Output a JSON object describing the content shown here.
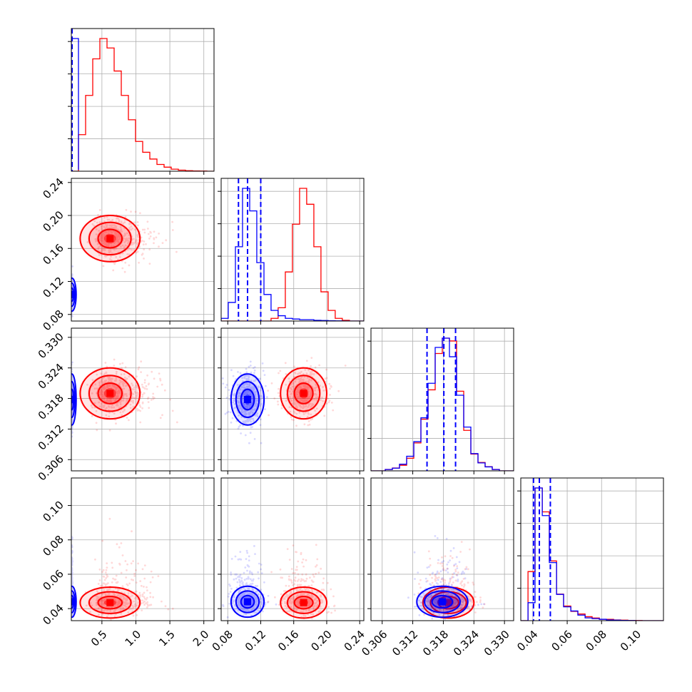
{
  "chart_data": {
    "type": "corner",
    "title": "",
    "grid": true,
    "colors": {
      "red": "#ff0000",
      "blue": "#0000ff"
    },
    "parameters": [
      {
        "name": "",
        "range": [
          0.05,
          2.15
        ]
      },
      {
        "name": "",
        "range": [
          0.072,
          0.245
        ],
        "ticks": [
          0.08,
          0.12,
          0.16,
          0.2,
          0.24
        ],
        "tick_labels": [
          "0.08",
          "0.12",
          "0.16",
          "0.20",
          "0.24"
        ]
      },
      {
        "name": "",
        "range": [
          0.3038,
          0.3318
        ],
        "ticks": [
          0.306,
          0.312,
          0.318,
          0.324,
          0.33
        ],
        "tick_labels": [
          "0.306",
          "0.312",
          "0.318",
          "0.324",
          "0.330"
        ]
      },
      {
        "name": "",
        "range": [
          0.033,
          0.116
        ],
        "ticks": [
          0.04,
          0.06,
          0.08,
          0.1
        ],
        "tick_labels": [
          "0.04",
          "0.06",
          "0.08",
          "0.10"
        ]
      }
    ],
    "x_ticks_param0": [
      0.5,
      1.0,
      1.5,
      2.0
    ],
    "x_tick_labels_param0": [
      "0.5",
      "1.0",
      "1.5",
      "2.0"
    ],
    "series": [
      {
        "color": "red",
        "histograms": [
          {
            "edges": [
              0.05,
              0.155,
              0.26,
              0.365,
              0.47,
              0.575,
              0.68,
              0.785,
              0.89,
              0.995,
              1.1,
              1.205,
              1.31,
              1.415,
              1.52,
              1.625,
              1.73,
              1.835,
              1.94,
              2.045,
              2.15
            ],
            "counts": [
              0,
              0.27,
              0.56,
              0.83,
              0.98,
              0.91,
              0.74,
              0.56,
              0.38,
              0.22,
              0.14,
              0.09,
              0.05,
              0.03,
              0.015,
              0.008,
              0.004,
              0.002,
              0.001,
              0
            ]
          },
          {
            "edges": [
              0.072,
              0.0806,
              0.0893,
              0.0979,
              0.1066,
              0.1152,
              0.1239,
              0.1325,
              0.1411,
              0.1498,
              0.1584,
              0.1671,
              0.1757,
              0.1844,
              0.193,
              0.2017,
              0.2103,
              0.2189,
              0.2276,
              0.2362,
              0.2449
            ],
            "counts": [
              0,
              0,
              0,
              0,
              0,
              0,
              0,
              0.02,
              0.1,
              0.37,
              0.73,
              1.0,
              0.88,
              0.56,
              0.22,
              0.08,
              0.02,
              0.005,
              0,
              0
            ]
          },
          {
            "edges": [
              0.3038,
              0.3052,
              0.3066,
              0.308,
              0.3094,
              0.3108,
              0.3122,
              0.3136,
              0.315,
              0.3164,
              0.3178,
              0.3192,
              0.3206,
              0.322,
              0.3234,
              0.3248,
              0.3262,
              0.3276,
              0.329,
              0.3304,
              0.3318
            ],
            "counts": [
              0,
              0,
              0.01,
              0.02,
              0.04,
              0.09,
              0.2,
              0.37,
              0.58,
              0.84,
              0.95,
              0.93,
              0.57,
              0.29,
              0.12,
              0.06,
              0.03,
              0.01,
              0,
              0
            ]
          },
          {
            "edges": [
              0.033,
              0.0372,
              0.0413,
              0.0455,
              0.0496,
              0.0538,
              0.0579,
              0.0621,
              0.0662,
              0.0704,
              0.0745,
              0.0787,
              0.0828,
              0.087,
              0.0911,
              0.0953,
              0.0994,
              0.1036,
              0.1077,
              0.1119,
              0.116
            ],
            "counts": [
              0,
              0.37,
              1.0,
              0.82,
              0.45,
              0.2,
              0.11,
              0.07,
              0.05,
              0.03,
              0.02,
              0.01,
              0.01,
              0.005,
              0.004,
              0.002,
              0.001,
              0,
              0,
              0
            ]
          }
        ],
        "means": [
          0.62,
          0.172,
          0.319,
          0.0435
        ],
        "sigmas": [
          0.22,
          0.014,
          0.0025,
          0.0045
        ]
      },
      {
        "color": "blue",
        "histograms": [
          {
            "edges": [
              0.05,
              0.155
            ],
            "counts": [
              1.0,
              0.01
            ]
          },
          {
            "edges": [
              0.072,
              0.0806,
              0.0893,
              0.0979,
              0.1066,
              0.1152,
              0.1239,
              0.1325,
              0.1411,
              0.1498,
              0.1584,
              0.1671,
              0.1757,
              0.1844,
              0.193,
              0.2017,
              0.2103,
              0.2189,
              0.2276,
              0.2362,
              0.2449
            ],
            "counts": [
              0.02,
              0.14,
              0.56,
              1.0,
              0.83,
              0.44,
              0.2,
              0.08,
              0.04,
              0.02,
              0.015,
              0.01,
              0.01,
              0.005,
              0.004,
              0.002,
              0.001,
              0,
              0,
              0
            ]
          },
          {
            "edges": [
              0.3038,
              0.3052,
              0.3066,
              0.308,
              0.3094,
              0.3108,
              0.3122,
              0.3136,
              0.315,
              0.3164,
              0.3178,
              0.3192,
              0.3206,
              0.322,
              0.3234,
              0.3248,
              0.3262,
              0.3276,
              0.329,
              0.3304,
              0.3318
            ],
            "counts": [
              0,
              0,
              0.01,
              0.02,
              0.05,
              0.11,
              0.22,
              0.4,
              0.66,
              0.93,
              1.0,
              0.86,
              0.57,
              0.33,
              0.13,
              0.06,
              0.03,
              0.01,
              0,
              0
            ]
          },
          {
            "edges": [
              0.033,
              0.0372,
              0.0413,
              0.0455,
              0.0496,
              0.0538,
              0.0579,
              0.0621,
              0.0662,
              0.0704,
              0.0745,
              0.0787,
              0.0828,
              0.087,
              0.0911,
              0.0953,
              0.0994,
              0.1036,
              0.1077,
              0.1119,
              0.116
            ],
            "counts": [
              0,
              0.13,
              0.96,
              0.76,
              0.42,
              0.19,
              0.1,
              0.07,
              0.04,
              0.02,
              0.015,
              0.01,
              0.005,
              0.004,
              0.002,
              0.001,
              0,
              0,
              0,
              0
            ]
          }
        ],
        "quantiles": [
          [
            0.052,
            0.056,
            0.061
          ],
          [
            0.093,
            0.104,
            0.12
          ],
          [
            0.3148,
            0.3181,
            0.3204
          ],
          [
            0.0404,
            0.0438,
            0.0502
          ]
        ],
        "means": [
          0.058,
          0.104,
          0.3178,
          0.044
        ],
        "sigmas": [
          0.006,
          0.01,
          0.0025,
          0.0045
        ]
      }
    ]
  }
}
